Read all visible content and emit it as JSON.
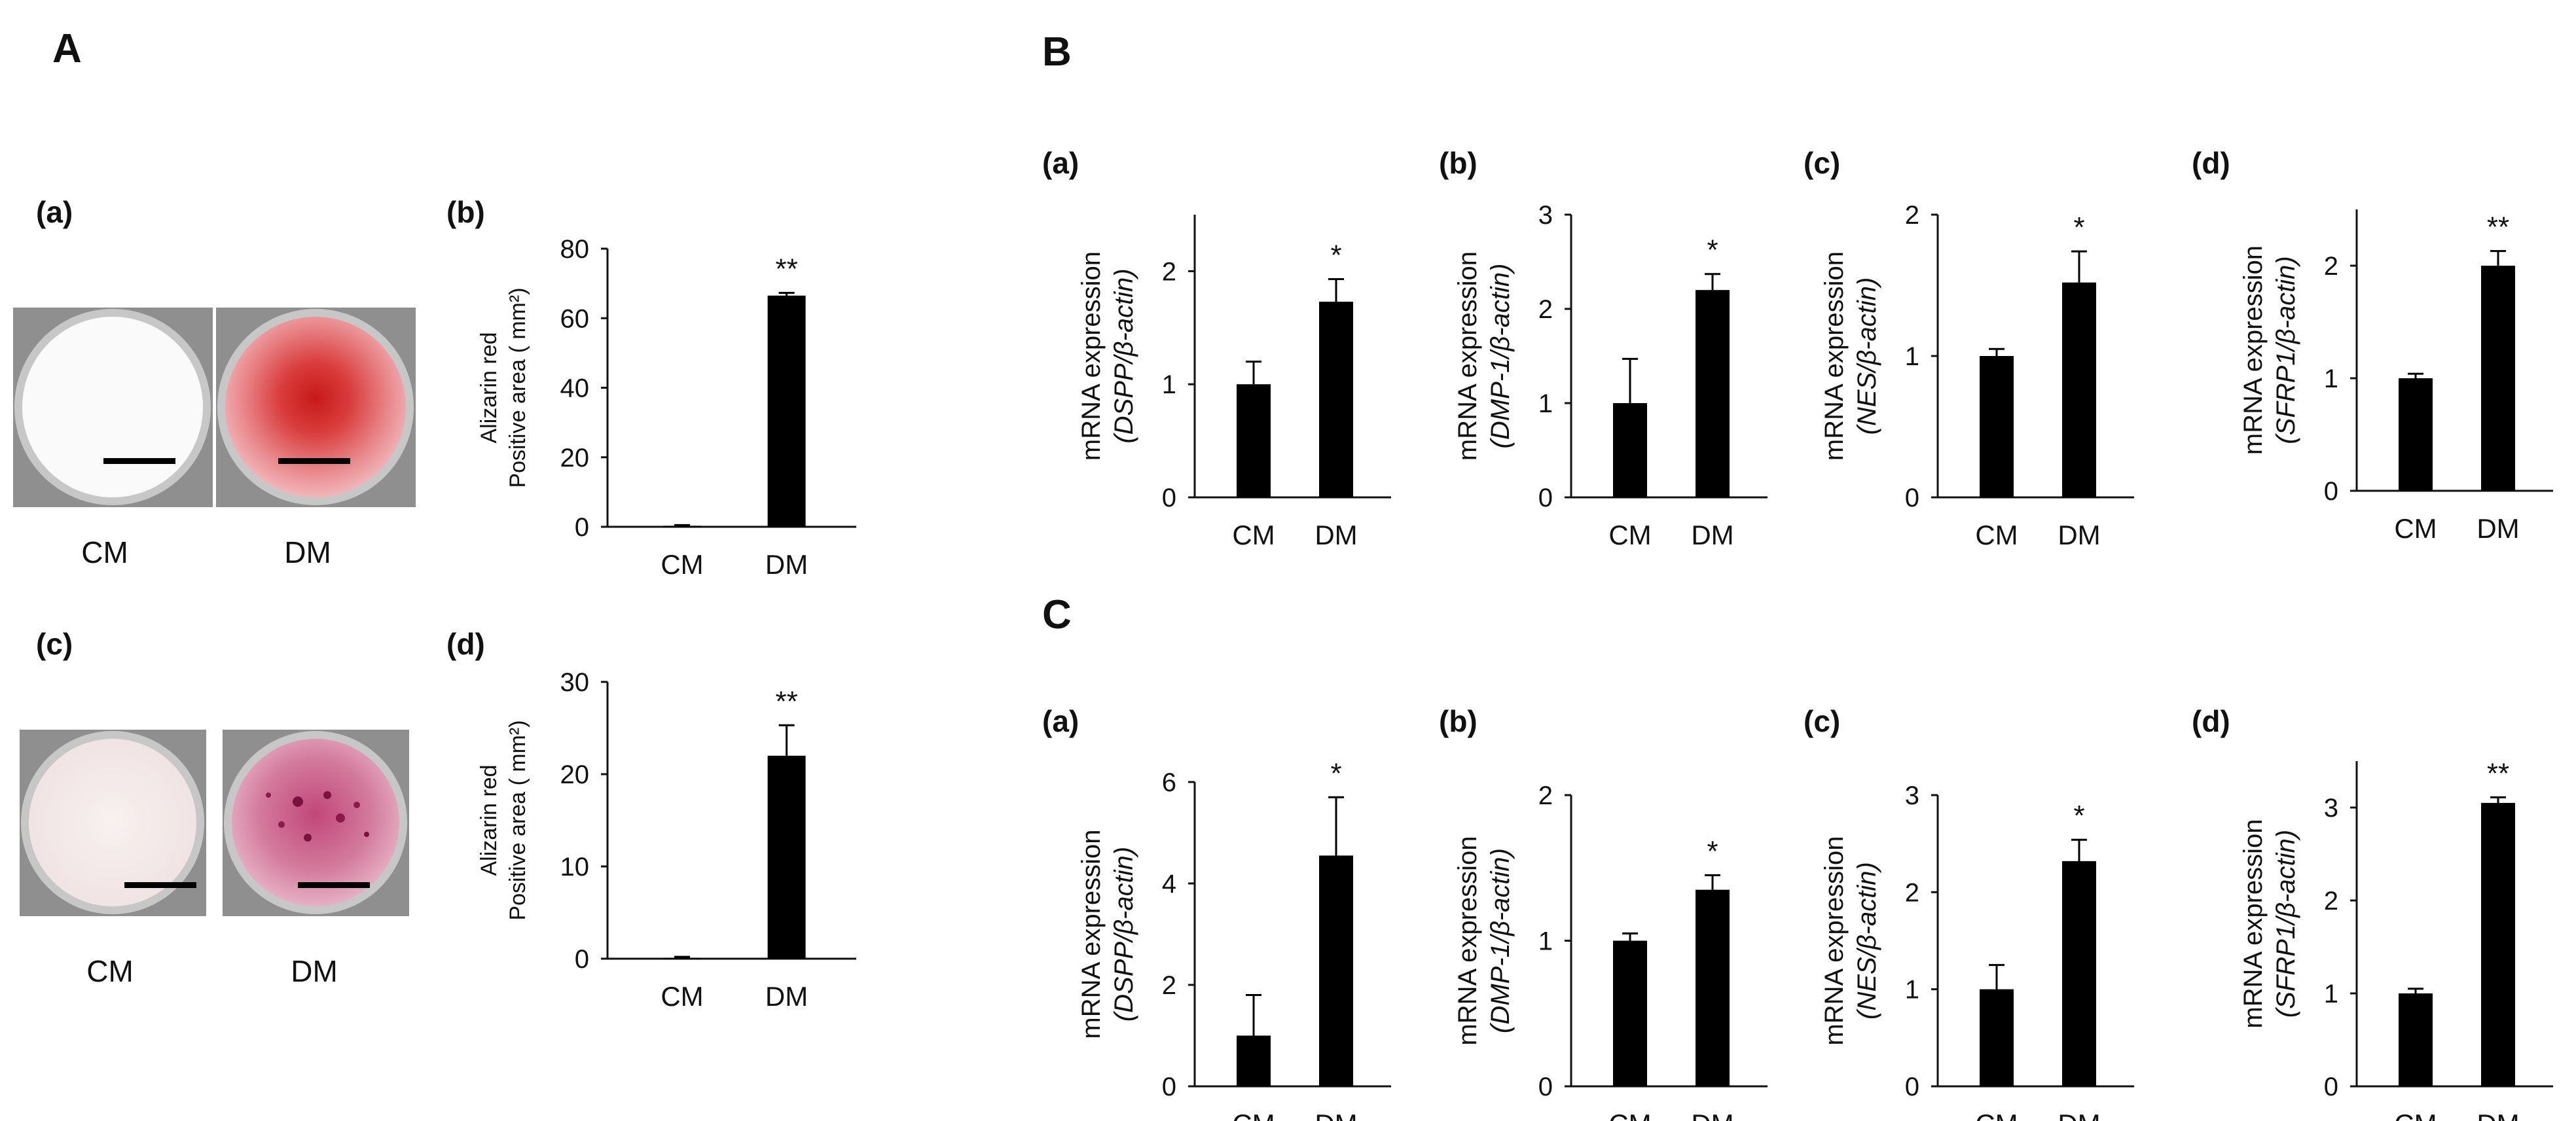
{
  "figure": {
    "panel_A": {
      "letter": "A",
      "photo_row_1": {
        "label": "(a)",
        "wells": [
          "CM",
          "DM"
        ]
      },
      "photo_row_2": {
        "label": "(c)",
        "wells": [
          "CM",
          "DM"
        ]
      }
    },
    "panel_B": {
      "letter": "B"
    },
    "panel_C": {
      "letter": "C"
    }
  },
  "colors": {
    "bar": "#000000",
    "axis": "#111111",
    "stain_cm": "#f7f2f1",
    "stain_dm": "#d33c3c"
  },
  "chart_data": [
    {
      "id": "A-b",
      "type": "bar",
      "label": "(b)",
      "categories": [
        "CM",
        "DM"
      ],
      "values": [
        0.3,
        66.5
      ],
      "errors": [
        0.2,
        0.8
      ],
      "significance": [
        "",
        "**"
      ],
      "ylabel_lines": [
        "Alizarin red",
        "Positive area ( mm²)"
      ],
      "yticks": [
        0,
        20,
        40,
        60,
        80
      ],
      "ylim": [
        0,
        80
      ]
    },
    {
      "id": "A-d",
      "type": "bar",
      "label": "(d)",
      "categories": [
        "CM",
        "DM"
      ],
      "values": [
        0.1,
        22.0
      ],
      "errors": [
        0.1,
        3.3
      ],
      "significance": [
        "",
        "**"
      ],
      "ylabel_lines": [
        "Alizarin red",
        "Positive area ( mm²)"
      ],
      "yticks": [
        0,
        10,
        20,
        30
      ],
      "ylim": [
        0,
        30
      ]
    },
    {
      "id": "B-a",
      "type": "bar",
      "label": "(a)",
      "categories": [
        "CM",
        "DM"
      ],
      "values": [
        1.0,
        1.73
      ],
      "errors": [
        0.2,
        0.2
      ],
      "significance": [
        "",
        "*"
      ],
      "ylabel_lines": [
        "mRNA expression",
        "(DSPP/β-actin)"
      ],
      "yticks": [
        0,
        1,
        2
      ],
      "ylim": [
        0,
        2.5
      ]
    },
    {
      "id": "B-b",
      "type": "bar",
      "label": "(b)",
      "categories": [
        "CM",
        "DM"
      ],
      "values": [
        1.0,
        2.2
      ],
      "errors": [
        0.47,
        0.17
      ],
      "significance": [
        "",
        "*"
      ],
      "ylabel_lines": [
        "mRNA expression",
        "(DMP-1/β-actin)"
      ],
      "yticks": [
        0,
        1,
        2,
        3
      ],
      "ylim": [
        0,
        3
      ]
    },
    {
      "id": "B-c",
      "type": "bar",
      "label": "(c)",
      "categories": [
        "CM",
        "DM"
      ],
      "values": [
        1.0,
        1.52
      ],
      "errors": [
        0.05,
        0.22
      ],
      "significance": [
        "",
        "*"
      ],
      "ylabel_lines": [
        "mRNA expression",
        "(NES/β-actin)"
      ],
      "yticks": [
        0,
        1,
        2
      ],
      "ylim": [
        0,
        2
      ]
    },
    {
      "id": "B-d",
      "type": "bar",
      "label": "(d)",
      "categories": [
        "CM",
        "DM"
      ],
      "values": [
        1.0,
        2.0
      ],
      "errors": [
        0.04,
        0.13
      ],
      "significance": [
        "",
        "**"
      ],
      "ylabel_lines": [
        "mRNA expression",
        "(SFRP1/β-actin)"
      ],
      "yticks": [
        0,
        1,
        2
      ],
      "ylim": [
        0,
        2.5
      ]
    },
    {
      "id": "C-a",
      "type": "bar",
      "label": "(a)",
      "categories": [
        "CM",
        "DM"
      ],
      "values": [
        1.0,
        4.55
      ],
      "errors": [
        0.8,
        1.15
      ],
      "significance": [
        "",
        "*"
      ],
      "ylabel_lines": [
        "mRNA expression",
        "(DSPP/β-actin)"
      ],
      "yticks": [
        0,
        2,
        4,
        6
      ],
      "ylim": [
        0,
        6
      ]
    },
    {
      "id": "C-b",
      "type": "bar",
      "label": "(b)",
      "categories": [
        "CM",
        "DM"
      ],
      "values": [
        1.0,
        1.35
      ],
      "errors": [
        0.05,
        0.1
      ],
      "significance": [
        "",
        "*"
      ],
      "ylabel_lines": [
        "mRNA expression",
        "(DMP-1/β-actin)"
      ],
      "yticks": [
        0,
        1,
        2
      ],
      "ylim": [
        0,
        2
      ]
    },
    {
      "id": "C-c",
      "type": "bar",
      "label": "(c)",
      "categories": [
        "CM",
        "DM"
      ],
      "values": [
        1.0,
        2.32
      ],
      "errors": [
        0.25,
        0.22
      ],
      "significance": [
        "",
        "*"
      ],
      "ylabel_lines": [
        "mRNA expression",
        "(NES/β-actin)"
      ],
      "yticks": [
        0,
        1,
        2,
        3
      ],
      "ylim": [
        0,
        3
      ]
    },
    {
      "id": "C-d",
      "type": "bar",
      "label": "(d)",
      "categories": [
        "CM",
        "DM"
      ],
      "values": [
        1.0,
        3.05
      ],
      "errors": [
        0.05,
        0.06
      ],
      "significance": [
        "",
        "**"
      ],
      "ylabel_lines": [
        "mRNA expression",
        "(SFRP1/β-actin)"
      ],
      "yticks": [
        0,
        1,
        2,
        3
      ],
      "ylim": [
        0,
        3.5
      ]
    }
  ]
}
